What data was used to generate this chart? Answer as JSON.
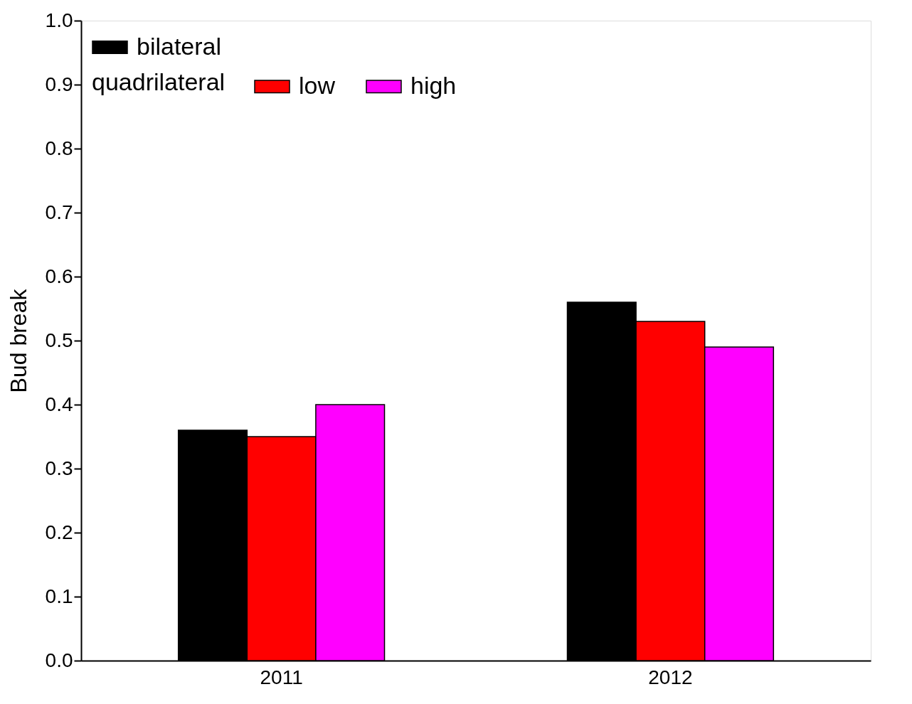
{
  "chart_data": {
    "type": "bar",
    "ylabel": "Bud break",
    "categories": [
      "2011",
      "2012"
    ],
    "series": [
      {
        "name": "bilateral",
        "color": "#000000",
        "values": [
          0.36,
          0.56
        ]
      },
      {
        "name": "low",
        "color": "#ff0000",
        "values": [
          0.35,
          0.53
        ]
      },
      {
        "name": "high",
        "color": "#ff00ff",
        "values": [
          0.4,
          0.49
        ]
      }
    ],
    "legend_title": "quadrilateral",
    "ylim": [
      0,
      1.0
    ],
    "yticks": [
      {
        "value": 0,
        "label": "0.0"
      },
      0.1,
      0.2,
      0.3,
      0.4,
      0.5,
      0.6,
      0.7,
      0.8,
      0.9,
      {
        "value": 1.0,
        "label": "1.0"
      }
    ],
    "grid": false,
    "legend": "top left"
  }
}
